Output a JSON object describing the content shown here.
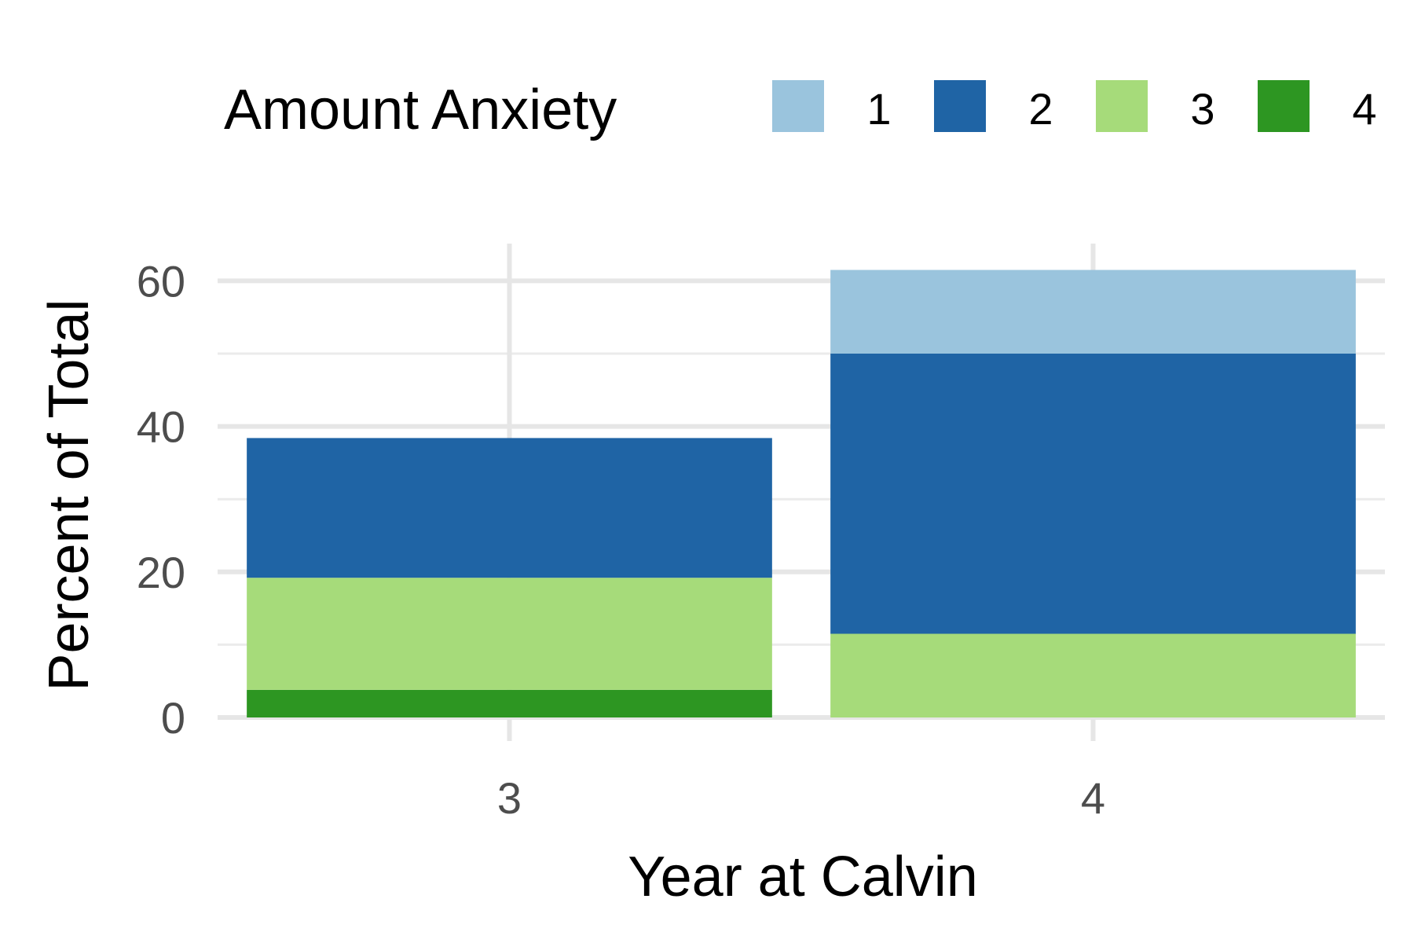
{
  "chart_data": {
    "type": "bar",
    "stacked": true,
    "xlabel": "Year at Calvin",
    "ylabel": "Percent of Total",
    "categories": [
      "3",
      "4"
    ],
    "ylim": [
      0,
      65
    ],
    "yticks": [
      0,
      20,
      40,
      60
    ],
    "grid": true,
    "legend": {
      "title": "Amount Anxiety",
      "placement": "top"
    },
    "series": [
      {
        "name": "1",
        "color": "#9ac4dd",
        "values": [
          0,
          11.5
        ]
      },
      {
        "name": "2",
        "color": "#1f64a5",
        "values": [
          19.2,
          38.5
        ]
      },
      {
        "name": "3",
        "color": "#a6db7a",
        "values": [
          15.4,
          11.5
        ]
      },
      {
        "name": "4",
        "color": "#2d9622",
        "values": [
          3.8,
          0
        ]
      }
    ]
  }
}
